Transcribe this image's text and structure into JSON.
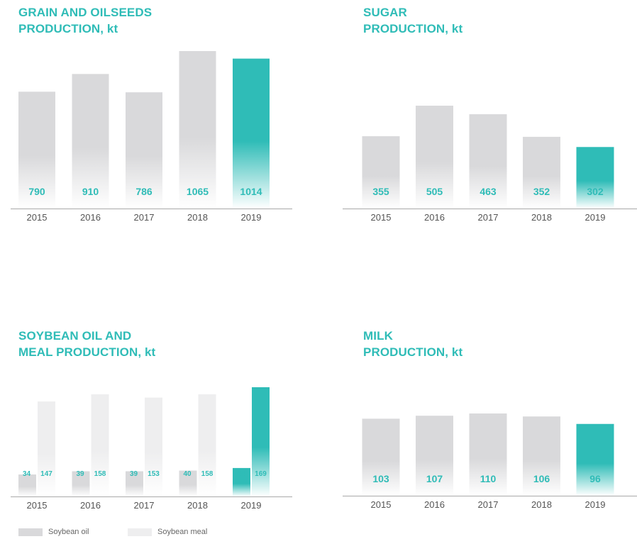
{
  "colors": {
    "accent": "#2fbcb7",
    "bar_gray": "#d9d9db",
    "bar_light": "#eeeeef",
    "axis": "#b5b5b5"
  },
  "panels": {
    "grain": {
      "title_line1": "GRAIN AND OILSEEDS",
      "title_line2": "PRODUCTION, kt"
    },
    "sugar": {
      "title_line1": "SUGAR",
      "title_line2": "PRODUCTION, kt"
    },
    "soy": {
      "title_line1": "SOYBEAN OIL AND",
      "title_line2": "MEAL PRODUCTION, kt"
    },
    "milk": {
      "title_line1": "MILK",
      "title_line2": "PRODUCTION, kt"
    }
  },
  "legend": {
    "soybean_oil": "Soybean oil",
    "soybean_meal": "Soybean meal"
  },
  "chart_data": [
    {
      "type": "bar",
      "title": "GRAIN AND OILSEEDS PRODUCTION, kt",
      "categories": [
        "2015",
        "2016",
        "2017",
        "2018",
        "2019"
      ],
      "values": [
        790,
        910,
        786,
        1065,
        1014
      ],
      "highlight": "2019"
    },
    {
      "type": "bar",
      "title": "SUGAR PRODUCTION, kt",
      "categories": [
        "2015",
        "2016",
        "2017",
        "2018",
        "2019"
      ],
      "values": [
        355,
        505,
        463,
        352,
        302
      ],
      "highlight": "2019"
    },
    {
      "type": "bar",
      "title": "SOYBEAN OIL AND MEAL PRODUCTION, kt",
      "categories": [
        "2015",
        "2016",
        "2017",
        "2018",
        "2019"
      ],
      "series": [
        {
          "name": "Soybean oil",
          "values": [
            34,
            39,
            39,
            40,
            44
          ]
        },
        {
          "name": "Soybean meal",
          "values": [
            147,
            158,
            153,
            158,
            169
          ]
        }
      ],
      "highlight": "2019",
      "legend": "bottom-left"
    },
    {
      "type": "bar",
      "title": "MILK PRODUCTION, kt",
      "categories": [
        "2015",
        "2016",
        "2017",
        "2018",
        "2019"
      ],
      "values": [
        103,
        107,
        110,
        106,
        96
      ],
      "highlight": "2019"
    }
  ]
}
